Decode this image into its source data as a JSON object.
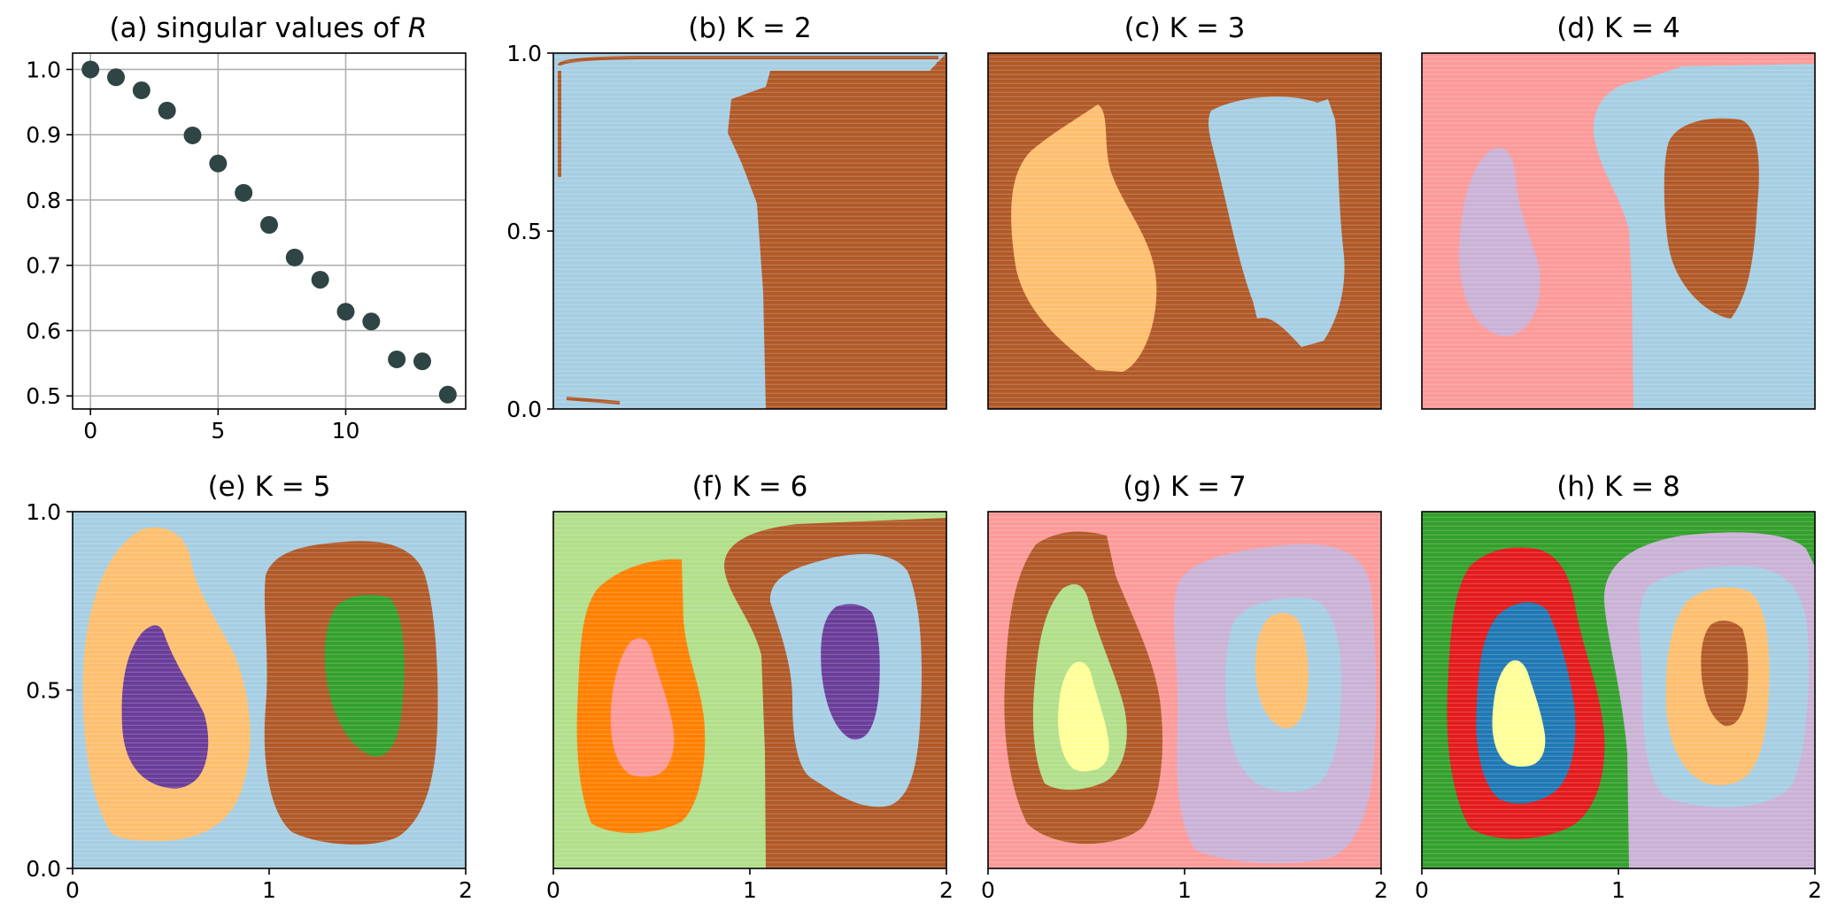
{
  "chart_data": [
    {
      "id": "a",
      "type": "scatter",
      "title": "(a) singular values of ",
      "title_italic": "R",
      "grid": true,
      "xlim": [
        -0.7,
        14.7
      ],
      "ylim": [
        0.48,
        1.025
      ],
      "xticks": [
        0,
        5,
        10
      ],
      "yticks": [
        0.5,
        0.6,
        0.7,
        0.8,
        0.9,
        1.0
      ],
      "xtick_labels": [
        "0",
        "5",
        "10"
      ],
      "ytick_labels": [
        "0.5",
        "0.6",
        "0.7",
        "0.8",
        "0.9",
        "1.0"
      ],
      "marker_color": "#2f4444",
      "x": [
        0,
        1,
        2,
        3,
        4,
        5,
        6,
        7,
        8,
        9,
        10,
        11,
        12,
        13,
        14
      ],
      "y": [
        1.0,
        0.988,
        0.968,
        0.937,
        0.899,
        0.856,
        0.811,
        0.762,
        0.712,
        0.678,
        0.629,
        0.614,
        0.556,
        0.553,
        0.502
      ]
    },
    {
      "id": "b",
      "type": "heatmap",
      "title": "(b) K = 2",
      "xlim": [
        0,
        2
      ],
      "ylim": [
        0,
        1
      ],
      "xtick_labels": [],
      "ytick_labels": [
        "0.0",
        "0.5",
        "1.0"
      ],
      "region_colors": [
        "#a6cee3",
        "#b15928"
      ]
    },
    {
      "id": "c",
      "type": "heatmap",
      "title": "(c) K = 3",
      "xlim": [
        0,
        2
      ],
      "ylim": [
        0,
        1
      ],
      "xtick_labels": [],
      "ytick_labels": [],
      "region_colors": [
        "#b15928",
        "#fdbf6f",
        "#a6cee3"
      ]
    },
    {
      "id": "d",
      "type": "heatmap",
      "title": "(d) K = 4",
      "xlim": [
        0,
        2
      ],
      "ylim": [
        0,
        1
      ],
      "xtick_labels": [],
      "ytick_labels": [],
      "region_colors": [
        "#fb9a99",
        "#a6cee3",
        "#cab2d6",
        "#b15928"
      ]
    },
    {
      "id": "e",
      "type": "heatmap",
      "title": "(e) K = 5",
      "xlim": [
        0,
        2
      ],
      "ylim": [
        0,
        1
      ],
      "xtick_labels": [
        "0",
        "1",
        "2"
      ],
      "ytick_labels": [
        "0.0",
        "0.5",
        "1.0"
      ],
      "region_colors": [
        "#a6cee3",
        "#fdbf6f",
        "#6a3d9a",
        "#b15928",
        "#33a02c"
      ]
    },
    {
      "id": "f",
      "type": "heatmap",
      "title": "(f) K = 6",
      "xlim": [
        0,
        2
      ],
      "ylim": [
        0,
        1
      ],
      "xtick_labels": [
        "0",
        "1",
        "2"
      ],
      "ytick_labels": [],
      "region_colors": [
        "#b2df8a",
        "#ff7f00",
        "#fb9a99",
        "#b15928",
        "#a6cee3",
        "#6a3d9a"
      ]
    },
    {
      "id": "g",
      "type": "heatmap",
      "title": "(g) K = 7",
      "xlim": [
        0,
        2
      ],
      "ylim": [
        0,
        1
      ],
      "xtick_labels": [
        "0",
        "1",
        "2"
      ],
      "ytick_labels": [],
      "region_colors": [
        "#fb9a99",
        "#b15928",
        "#b2df8a",
        "#ffff99",
        "#cab2d6",
        "#a6cee3",
        "#fdbf6f"
      ]
    },
    {
      "id": "h",
      "type": "heatmap",
      "title": "(h) K = 8",
      "xlim": [
        0,
        2
      ],
      "ylim": [
        0,
        1
      ],
      "xtick_labels": [
        "0",
        "1",
        "2"
      ],
      "ytick_labels": [],
      "region_colors": [
        "#33a02c",
        "#e31a1c",
        "#1f78b4",
        "#ffff99",
        "#cab2d6",
        "#a6cee3",
        "#fdbf6f",
        "#b15928"
      ]
    }
  ]
}
